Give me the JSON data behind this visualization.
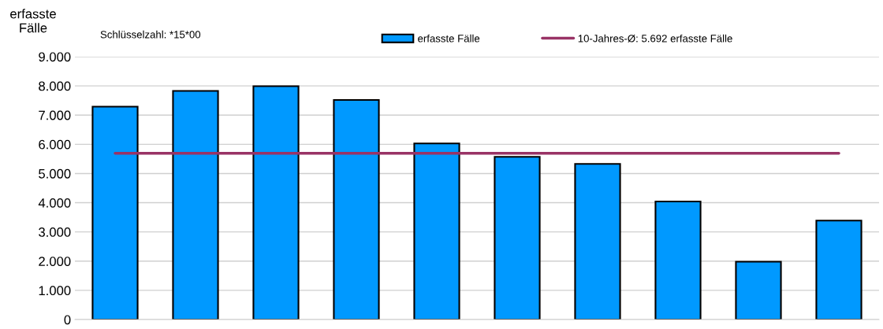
{
  "chart_data": {
    "type": "bar",
    "ylabel": "erfasste\nFälle",
    "annotations": [
      "Schlüsselzahl: *15*00"
    ],
    "categories": [
      null,
      null,
      null,
      null,
      null,
      null,
      null,
      null,
      null,
      null
    ],
    "series": [
      {
        "name": "erfasste Fälle",
        "color": "#0099ff",
        "values": [
          7290,
          7830,
          7990,
          7520,
          6030,
          5570,
          5330,
          4040,
          1980,
          3390
        ]
      },
      {
        "name": "10-Jahres-Ø: 5.692 erfasste Fälle",
        "type": "line",
        "color": "#993366",
        "values": [
          5692,
          5692,
          5692,
          5692,
          5692,
          5692,
          5692,
          5692,
          5692,
          5692
        ]
      }
    ],
    "ylim": [
      0,
      9000
    ],
    "yticks": [
      {
        "value": 0,
        "label": "0"
      },
      {
        "value": 1000,
        "label": "1.000"
      },
      {
        "value": 2000,
        "label": "2.000"
      },
      {
        "value": 3000,
        "label": "3.000"
      },
      {
        "value": 4000,
        "label": "4.000"
      },
      {
        "value": 5000,
        "label": "5.000"
      },
      {
        "value": 6000,
        "label": "6.000"
      },
      {
        "value": 7000,
        "label": "7.000"
      },
      {
        "value": 8000,
        "label": "8.000"
      },
      {
        "value": 9000,
        "label": "9.000"
      }
    ],
    "grid": "y",
    "legend": "top",
    "tick_labels": "y",
    "marker": "none",
    "line_style": "solid"
  }
}
